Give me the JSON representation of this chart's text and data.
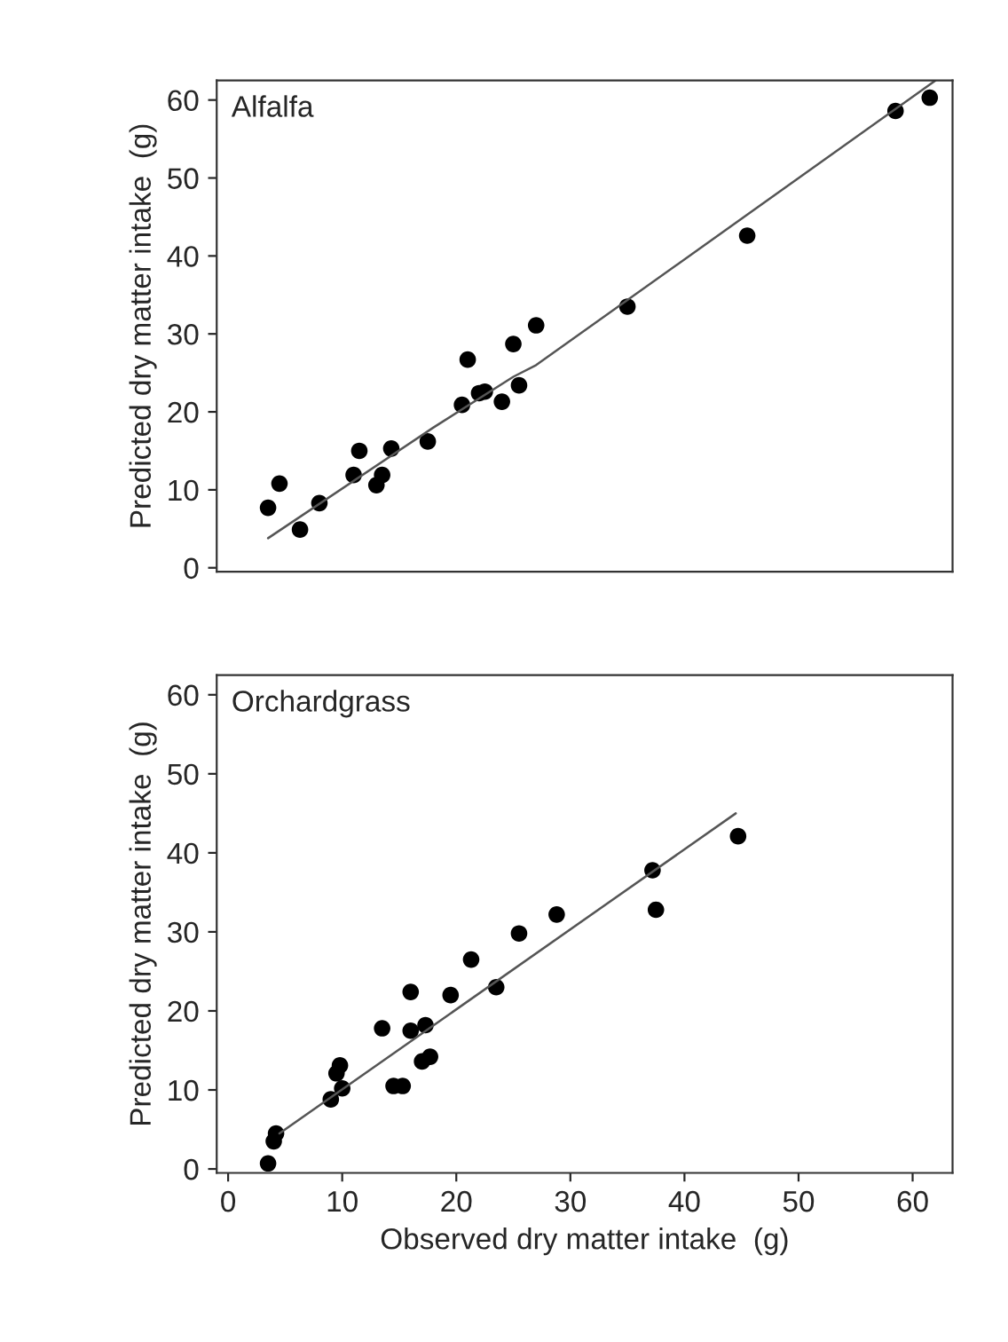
{
  "chart_data": [
    {
      "type": "scatter",
      "annotations": [
        "Alfalfa"
      ],
      "ylabel": "Predicted dry matter intake  (g)",
      "xlim": [
        -1,
        63.5
      ],
      "ylim": [
        -0.5,
        62.5
      ],
      "xticks": [
        0,
        10,
        20,
        30,
        40,
        50,
        60
      ],
      "yticks": [
        0,
        10,
        20,
        30,
        40,
        50,
        60
      ],
      "tick_labels": "y",
      "grid": false,
      "legend": false,
      "series": [
        {
          "marker": "circle",
          "color": "#000000",
          "x": [
            3.5,
            4.5,
            6.3,
            8,
            11,
            11.5,
            13,
            13.5,
            14.3,
            17.5,
            20.5,
            21,
            22,
            22.5,
            24,
            25,
            25.5,
            27,
            35,
            45.5,
            58.5,
            61.5
          ],
          "values": [
            7.7,
            10.8,
            4.9,
            8.3,
            11.9,
            15,
            10.6,
            11.9,
            15.3,
            16.2,
            20.9,
            26.7,
            22.4,
            22.6,
            21.3,
            28.7,
            23.4,
            31.1,
            33.5,
            42.6,
            58.6,
            60.3
          ]
        },
        {
          "type": "line",
          "marker": "none",
          "color": "#555555",
          "line_style": "solid",
          "x": [
            3.5,
            18,
            25,
            27,
            62
          ],
          "values": [
            3.8,
            18,
            24.5,
            26,
            62.5
          ]
        }
      ]
    },
    {
      "type": "scatter",
      "annotations": [
        "Orchardgrass"
      ],
      "xlabel": "Observed dry matter intake  (g)",
      "ylabel": "Predicted dry matter intake  (g)",
      "xlim": [
        -1,
        63.5
      ],
      "ylim": [
        -0.5,
        62.5
      ],
      "xticks": [
        0,
        10,
        20,
        30,
        40,
        50,
        60
      ],
      "yticks": [
        0,
        10,
        20,
        30,
        40,
        50,
        60
      ],
      "grid": false,
      "legend": false,
      "series": [
        {
          "marker": "circle",
          "color": "#000000",
          "x": [
            3.5,
            4,
            4.2,
            9,
            9.5,
            9.8,
            10,
            13.5,
            14.5,
            15.3,
            16,
            16,
            17,
            17.3,
            17.7,
            19.5,
            21.3,
            23.5,
            25.5,
            28.8,
            37.2,
            37.5,
            44.7
          ],
          "values": [
            0.7,
            3.5,
            4.5,
            8.8,
            12.1,
            13.1,
            10.2,
            17.8,
            10.5,
            10.5,
            22.4,
            17.5,
            13.6,
            18.2,
            14.2,
            22,
            26.5,
            23,
            29.8,
            32.2,
            37.8,
            32.8,
            42.1
          ]
        },
        {
          "type": "line",
          "marker": "none",
          "color": "#555555",
          "line_style": "solid",
          "x": [
            4.5,
            44.5
          ],
          "values": [
            4.5,
            45
          ]
        }
      ]
    }
  ]
}
